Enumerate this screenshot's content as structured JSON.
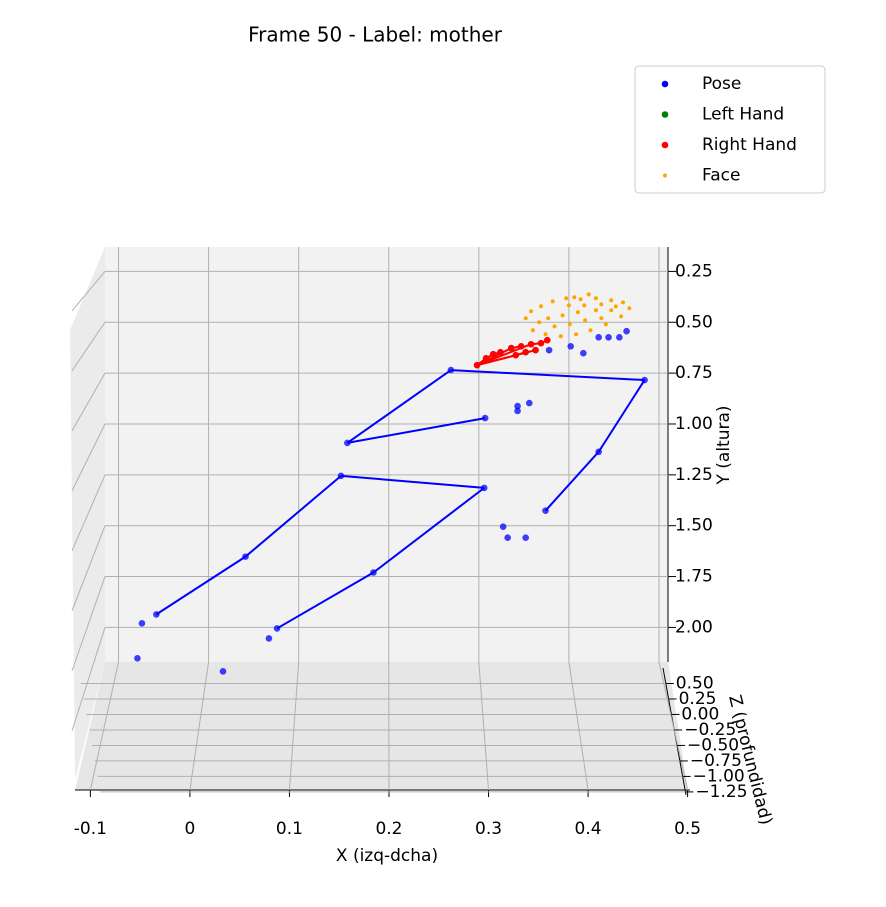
{
  "chart_data": {
    "type": "scatter3d",
    "title": "Frame 50 - Label: mother",
    "x_label": "X (izq-dcha)",
    "y_label": "Y (altura)",
    "z_label": "Z (profundidad)",
    "xlim": [
      -0.115,
      0.51
    ],
    "xticks": [
      -0.1,
      0.0,
      0.1,
      0.2,
      0.3,
      0.4,
      0.5
    ],
    "ylim": [
      0.13,
      2.17
    ],
    "yticks": [
      {
        "value": 0.25,
        "label": "0.25"
      },
      {
        "value": 0.5,
        "label": "0.50"
      },
      {
        "value": 0.75,
        "label": "0.75"
      },
      {
        "value": 1.0,
        "label": "1.00"
      },
      {
        "value": 1.25,
        "label": "1.25"
      },
      {
        "value": 1.5,
        "label": "1.50"
      },
      {
        "value": 1.75,
        "label": "1.75"
      },
      {
        "value": 2.0,
        "label": "2.00"
      }
    ],
    "zlim": [
      0.75,
      -1.3
    ],
    "zticks": [
      {
        "value": 0.5,
        "label": "0.50"
      },
      {
        "value": 0.25,
        "label": "0.25"
      },
      {
        "value": 0.0,
        "label": "0.00"
      },
      {
        "value": -0.25,
        "label": "−0.25"
      },
      {
        "value": -0.5,
        "label": "−0.50"
      },
      {
        "value": -0.75,
        "label": "−0.75"
      },
      {
        "value": -1.0,
        "label": "−1.00"
      },
      {
        "value": -1.25,
        "label": "−1.25"
      }
    ],
    "legend": "upper right",
    "grid": true,
    "series": [
      {
        "name": "Pose",
        "color": "#0000ff",
        "x": [
          0.269,
          0.484,
          0.154,
          0.307,
          0.433,
          0.374,
          0.147,
          0.306,
          0.041,
          0.183,
          -0.058,
          0.076,
          0.343,
          0.343,
          0.356,
          0.327,
          0.332,
          0.352,
          -0.074,
          -0.079,
          0.016,
          0.067,
          0.378,
          0.402,
          0.416,
          0.433,
          0.444,
          0.456,
          0.464
        ],
        "y": [
          0.735,
          0.784,
          1.093,
          0.971,
          1.137,
          1.426,
          1.255,
          1.314,
          1.652,
          1.73,
          1.936,
          2.005,
          0.912,
          0.936,
          0.897,
          1.505,
          1.559,
          1.559,
          1.98,
          2.152,
          2.216,
          2.054,
          0.637,
          0.618,
          0.652,
          0.574,
          0.574,
          0.574,
          0.544
        ],
        "connections": [
          [
            0,
            1
          ],
          [
            1,
            4
          ],
          [
            4,
            5
          ],
          [
            0,
            2
          ],
          [
            2,
            3
          ],
          [
            6,
            7
          ],
          [
            6,
            8
          ],
          [
            8,
            10
          ],
          [
            7,
            9
          ],
          [
            9,
            11
          ]
        ]
      },
      {
        "name": "Left Hand",
        "color": "#008000",
        "x": [],
        "y": [],
        "connections": []
      },
      {
        "name": "Right Hand",
        "color": "#ff0000",
        "x": [
          0.298,
          0.308,
          0.316,
          0.324,
          0.336,
          0.347,
          0.358,
          0.369,
          0.376,
          0.341,
          0.352,
          0.363
        ],
        "y": [
          0.711,
          0.677,
          0.657,
          0.647,
          0.627,
          0.618,
          0.608,
          0.603,
          0.588,
          0.662,
          0.647,
          0.637
        ],
        "connections": [
          [
            0,
            1
          ],
          [
            1,
            2
          ],
          [
            2,
            3
          ],
          [
            0,
            4
          ],
          [
            4,
            5
          ],
          [
            0,
            9
          ],
          [
            9,
            10
          ],
          [
            0,
            6
          ],
          [
            6,
            7
          ],
          [
            7,
            8
          ],
          [
            0,
            11
          ]
        ]
      },
      {
        "name": "Face",
        "color": "#ffa500",
        "x": [
          0.352,
          0.358,
          0.369,
          0.382,
          0.397,
          0.413,
          0.43,
          0.447,
          0.46,
          0.467,
          0.458,
          0.441,
          0.424,
          0.408,
          0.391,
          0.374,
          0.36,
          0.377,
          0.393,
          0.41,
          0.43,
          0.447,
          0.401,
          0.418,
          0.436,
          0.384,
          0.367,
          0.4,
          0.417,
          0.436,
          0.452,
          0.406,
          0.422
        ],
        "y": [
          0.48,
          0.446,
          0.421,
          0.397,
          0.382,
          0.387,
          0.382,
          0.392,
          0.402,
          0.431,
          0.471,
          0.51,
          0.539,
          0.559,
          0.569,
          0.559,
          0.539,
          0.48,
          0.466,
          0.451,
          0.441,
          0.441,
          0.51,
          0.49,
          0.48,
          0.52,
          0.5,
          0.417,
          0.417,
          0.412,
          0.422,
          0.377,
          0.363
        ],
        "connections": []
      }
    ]
  }
}
